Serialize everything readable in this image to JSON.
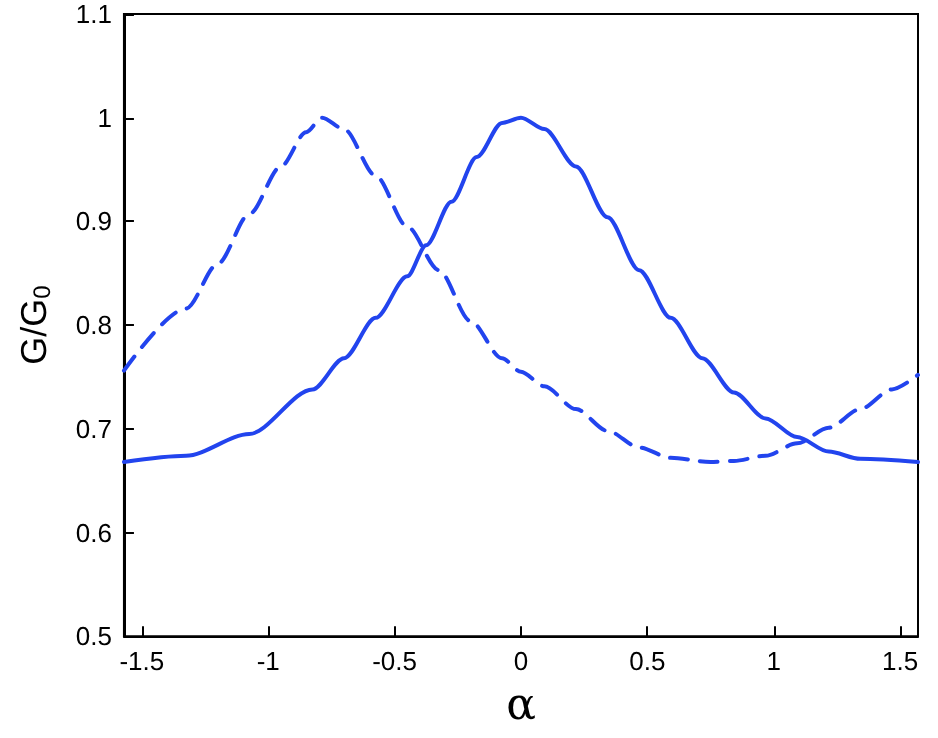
{
  "chart_data": {
    "type": "line",
    "xlabel": "α",
    "ylabel": "G/G$_{0}$",
    "xlim": [
      -1.5708,
      1.5708
    ],
    "xticks": [
      -1.5,
      -1,
      -0.5,
      0,
      0.5,
      1,
      1.5
    ],
    "ylim": [
      0.5,
      1.1
    ],
    "yticks": [
      0.5,
      0.6,
      0.7,
      0.8,
      0.9,
      1,
      1.1
    ],
    "grid": false,
    "marker": "none",
    "series": [
      {
        "color": "#2244ee",
        "line_style": "solid",
        "x": [
          -1.5708,
          -1.325,
          -1.075,
          -0.825,
          -0.7,
          -0.575,
          -0.45,
          -0.375,
          -0.275,
          -0.175,
          -0.075,
          0,
          0.0925,
          0.2175,
          0.3425,
          0.4675,
          0.5925,
          0.7175,
          0.8425,
          0.9675,
          1.0925,
          1.2175,
          1.3425,
          1.5708
        ],
        "values": [
          0.668,
          0.674,
          0.695,
          0.738,
          0.768,
          0.807,
          0.847,
          0.877,
          0.919,
          0.962,
          0.995,
          1,
          0.989,
          0.953,
          0.904,
          0.853,
          0.807,
          0.768,
          0.735,
          0.71,
          0.692,
          0.678,
          0.671,
          0.668
        ]
      },
      {
        "color": "#2244ee",
        "line_style": "dashed",
        "x": [
          -1.5708,
          -1.325,
          -1.2,
          -1.075,
          -0.95,
          -0.85,
          -0.7875,
          -0.7,
          -0.575,
          -0.45,
          -0.325,
          -0.2,
          -0.075,
          0,
          0.0925,
          0.2175,
          0.3425,
          0.4675,
          0.5925,
          0.75,
          0.8425,
          0.9675,
          1.0925,
          1.2175,
          1.3425,
          1.4675,
          1.5708
        ],
        "values": [
          0.756,
          0.816,
          0.859,
          0.907,
          0.953,
          0.986,
          1,
          0.989,
          0.944,
          0.895,
          0.853,
          0.804,
          0.768,
          0.755,
          0.741,
          0.719,
          0.698,
          0.682,
          0.672,
          0.668,
          0.669,
          0.674,
          0.686,
          0.701,
          0.719,
          0.738,
          0.752
        ]
      }
    ]
  }
}
